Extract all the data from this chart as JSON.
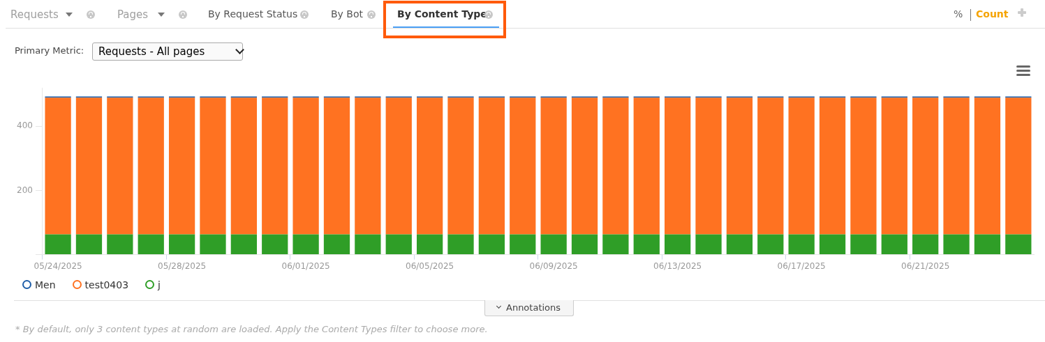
{
  "chart_data": {
    "type": "bar",
    "stacked": true,
    "categories": [
      "05/24/2025",
      null,
      null,
      null,
      "05/28/2025",
      null,
      null,
      null,
      "06/01/2025",
      null,
      null,
      null,
      "06/05/2025",
      null,
      null,
      null,
      "06/09/2025",
      null,
      null,
      null,
      "06/13/2025",
      null,
      null,
      null,
      "06/17/2025",
      null,
      null,
      null,
      "06/21/2025",
      null,
      null,
      null
    ],
    "series": [
      {
        "name": "j",
        "color": "#2f9e27",
        "values": [
          63,
          63,
          63,
          63,
          63,
          63,
          63,
          63,
          63,
          63,
          63,
          63,
          63,
          63,
          63,
          63,
          63,
          63,
          63,
          63,
          63,
          63,
          63,
          63,
          63,
          63,
          63,
          63,
          63,
          63,
          63,
          63
        ]
      },
      {
        "name": "test0403",
        "color": "#ff7221",
        "values": [
          426,
          426,
          426,
          426,
          426,
          426,
          426,
          426,
          426,
          426,
          426,
          426,
          426,
          426,
          426,
          426,
          426,
          426,
          426,
          426,
          426,
          426,
          426,
          426,
          426,
          426,
          426,
          426,
          426,
          426,
          426,
          426
        ]
      },
      {
        "name": "Men",
        "color": "#1f5fa8",
        "values": [
          4,
          4,
          4,
          4,
          4,
          4,
          4,
          4,
          4,
          4,
          4,
          4,
          4,
          4,
          4,
          4,
          4,
          4,
          4,
          4,
          4,
          4,
          4,
          4,
          4,
          4,
          4,
          4,
          4,
          4,
          4,
          4
        ]
      }
    ],
    "ylim": [
      0,
      520
    ],
    "yticks": [
      {
        "value": 0,
        "label": null
      },
      200,
      400
    ],
    "grid": false,
    "legend": "bottom left",
    "annotations": [
      "Requests",
      "Pages",
      "By Request Status",
      "By Bot",
      "By Content Type",
      "%",
      "Count",
      "Primary Metric:",
      "Requests - All pages",
      "Annotations",
      "* By default, only 3 content types at random are loaded. Apply the Content Types filter to choose more."
    ]
  }
}
